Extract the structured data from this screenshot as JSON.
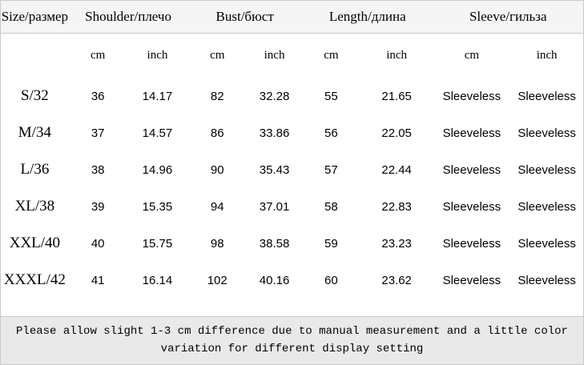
{
  "chart_data": {
    "type": "table",
    "column_groups": [
      {
        "label": "Size/размер",
        "span": 1
      },
      {
        "label": "Shoulder/плечо",
        "span": 2
      },
      {
        "label": "Bust/бюст",
        "span": 2
      },
      {
        "label": "Length/длина",
        "span": 2
      },
      {
        "label": "Sleeve/гильза",
        "span": 2
      }
    ],
    "unit_row": [
      "",
      "cm",
      "inch",
      "cm",
      "inch",
      "cm",
      "inch",
      "cm",
      "inch"
    ],
    "rows": [
      [
        "S/32",
        "36",
        "14.17",
        "82",
        "32.28",
        "55",
        "21.65",
        "Sleeveless",
        "Sleeveless"
      ],
      [
        "M/34",
        "37",
        "14.57",
        "86",
        "33.86",
        "56",
        "22.05",
        "Sleeveless",
        "Sleeveless"
      ],
      [
        "L/36",
        "38",
        "14.96",
        "90",
        "35.43",
        "57",
        "22.44",
        "Sleeveless",
        "Sleeveless"
      ],
      [
        "XL/38",
        "39",
        "15.35",
        "94",
        "37.01",
        "58",
        "22.83",
        "Sleeveless",
        "Sleeveless"
      ],
      [
        "XXL/40",
        "40",
        "15.75",
        "98",
        "38.58",
        "59",
        "23.23",
        "Sleeveless",
        "Sleeveless"
      ],
      [
        "XXXL/42",
        "41",
        "16.14",
        "102",
        "40.16",
        "60",
        "23.62",
        "Sleeveless",
        "Sleeveless"
      ]
    ]
  },
  "note": {
    "lines": [
      "Please allow slight 1-3 cm difference due to manual measurement and a little color",
      "variation for different display setting"
    ]
  },
  "colors": {
    "header_bg": "#f5f5f5",
    "footer_bg": "#e9e9e9",
    "border": "#c9c9c9",
    "text": "#000000"
  }
}
